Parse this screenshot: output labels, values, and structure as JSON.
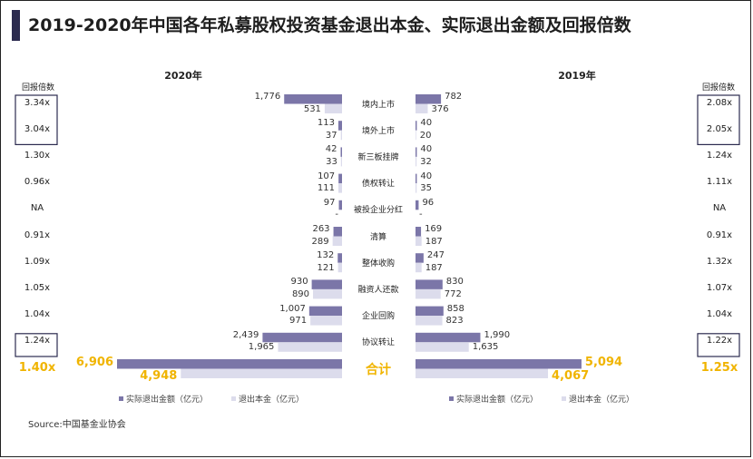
{
  "title": "2019-2020年中国各年私募股权投资基金退出本金、实际退出金额及回报倍数",
  "source": "Source:中国基金业协会",
  "colors": {
    "actual": "#7b76a8",
    "principal": "#dcdcec",
    "total_label": "#f0b400",
    "title_bar": "#2c2b4f"
  },
  "chart_data": {
    "type": "bar",
    "orientation": "horizontal-butterfly",
    "categories": [
      "境内上市",
      "境外上市",
      "新三板挂牌",
      "债权转让",
      "被投企业分红",
      "清算",
      "整体收购",
      "融资人还款",
      "企业回购",
      "协议转让",
      "合计"
    ],
    "years": [
      {
        "year_label": "2020年",
        "ratio_header": "回报倍数",
        "series": [
          {
            "name": "实际退出金额（亿元）",
            "values": [
              1776,
              113,
              42,
              107,
              97,
              263,
              132,
              930,
              1007,
              2439,
              6906
            ],
            "labels": [
              "1,776",
              "113",
              "42",
              "107",
              "97",
              "263",
              "132",
              "930",
              "1,007",
              "2,439",
              "6,906"
            ]
          },
          {
            "name": "退出本金（亿元）",
            "values": [
              531,
              37,
              33,
              111,
              null,
              289,
              121,
              890,
              971,
              1965,
              4948
            ],
            "labels": [
              "531",
              "37",
              "33",
              "111",
              "-",
              "289",
              "121",
              "890",
              "971",
              "1,965",
              "4,948"
            ]
          }
        ],
        "ratios": [
          "3.34x",
          "3.04x",
          "1.30x",
          "0.96x",
          "NA",
          "0.91x",
          "1.09x",
          "1.05x",
          "1.04x",
          "1.24x",
          "1.40x"
        ],
        "boxed_ratios": [
          0,
          1,
          9
        ]
      },
      {
        "year_label": "2019年",
        "ratio_header": "回报倍数",
        "series": [
          {
            "name": "实际退出金额（亿元）",
            "values": [
              782,
              40,
              40,
              40,
              96,
              169,
              247,
              830,
              858,
              1990,
              5094
            ],
            "labels": [
              "782",
              "40",
              "40",
              "40",
              "96",
              "169",
              "247",
              "830",
              "858",
              "1,990",
              "5,094"
            ]
          },
          {
            "name": "退出本金（亿元）",
            "values": [
              376,
              20,
              32,
              35,
              null,
              187,
              187,
              772,
              823,
              1635,
              4067
            ],
            "labels": [
              "376",
              "20",
              "32",
              "35",
              "-",
              "187",
              "187",
              "772",
              "823",
              "1,635",
              "4,067"
            ]
          }
        ],
        "ratios": [
          "2.08x",
          "2.05x",
          "1.24x",
          "1.11x",
          "NA",
          "0.91x",
          "1.32x",
          "1.07x",
          "1.04x",
          "1.22x",
          "1.25x"
        ],
        "boxed_ratios": [
          0,
          1,
          9
        ]
      }
    ],
    "legend": [
      "实际退出金额（亿元）",
      "退出本金（亿元）"
    ],
    "legend_position": "bottom"
  }
}
